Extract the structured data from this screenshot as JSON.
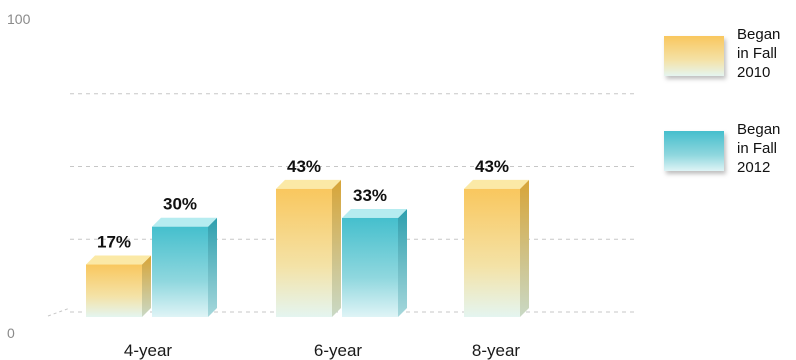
{
  "chart_data": {
    "type": "bar",
    "categories": [
      "4-year",
      "6-year",
      "8-year"
    ],
    "series": [
      {
        "name": "Began in Fall 2010",
        "legend_lines": [
          "Began",
          "in Fall",
          "2010"
        ],
        "values": [
          17,
          43,
          43
        ],
        "labels": [
          "17%",
          "43%",
          "43%"
        ],
        "color": "#f7c96a"
      },
      {
        "name": "Began in Fall 2012",
        "legend_lines": [
          "Began",
          "in Fall",
          "2012"
        ],
        "values": [
          30,
          33,
          null
        ],
        "labels": [
          "30%",
          "33%",
          null
        ],
        "color": "#5cc6d3"
      }
    ],
    "yticks": [
      "0",
      "100"
    ],
    "ylim": [
      0,
      100
    ],
    "grid": true,
    "legend": "right",
    "title": "",
    "xlabel": "",
    "ylabel": ""
  }
}
